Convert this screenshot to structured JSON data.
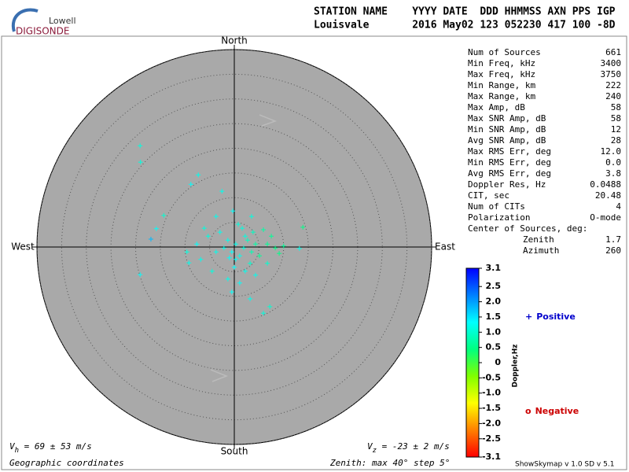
{
  "header": {
    "logo_top": "Lowell",
    "logo_bottom": "DIGISONDE",
    "line1": "STATION NAME    YYYY DATE  DDD HHMMSS AXN PPS IGP",
    "line2": "Louisvale       2016 May02 123 052230 417 100 -8D"
  },
  "stats": [
    {
      "label": "Num of Sources",
      "value": "661"
    },
    {
      "label": "Min Freq, kHz",
      "value": "3400"
    },
    {
      "label": "Max Freq, kHz",
      "value": "3750"
    },
    {
      "label": "Min Range, km",
      "value": "222"
    },
    {
      "label": "Max Range, km",
      "value": "240"
    },
    {
      "label": "Max Amp, dB",
      "value": "58"
    },
    {
      "label": "Max SNR Amp, dB",
      "value": "58"
    },
    {
      "label": "Min SNR Amp, dB",
      "value": "12"
    },
    {
      "label": "Avg SNR Amp, dB",
      "value": "28"
    },
    {
      "label": "Max RMS Err, deg",
      "value": "12.0"
    },
    {
      "label": "Min RMS Err, deg",
      "value": "0.0"
    },
    {
      "label": "Avg RMS Err, deg",
      "value": "3.8"
    },
    {
      "label": "Doppler Res, Hz",
      "value": "0.0488"
    },
    {
      "label": "CIT, sec",
      "value": "20.48"
    },
    {
      "label": "Num of CITs",
      "value": "4"
    },
    {
      "label": "Polarization",
      "value": "O-mode"
    }
  ],
  "center": {
    "title": "Center of Sources, deg:",
    "rows": [
      {
        "label": "Zenith",
        "value": "1.7"
      },
      {
        "label": "Azimuth",
        "value": "260"
      }
    ]
  },
  "chart_data": {
    "type": "skymap",
    "directions": {
      "north": "North",
      "south": "South",
      "west": "West",
      "east": "East"
    },
    "rlim": [
      0,
      40
    ],
    "rticks": [
      5,
      10,
      15,
      20,
      25,
      30,
      35,
      40
    ],
    "points": {
      "east": [
        -19.1,
        -19.0,
        -7.3,
        -8.8,
        -2.5,
        -14.3,
        -15.8,
        -16.9,
        -19.1,
        13.9,
        10.0,
        13.2,
        7.2,
        5.9,
        3.2,
        -0.5,
        -9.6,
        -9.2,
        -6.1,
        -3.7,
        -0.3,
        3.5,
        5.9,
        7.5,
        8.3,
        6.7,
        4.3,
        1.1,
        -1.3,
        -4.5,
        -6.8,
        -7.6,
        -5.3,
        -2.9,
        0.3,
        1.9,
        2.7,
        1.1,
        -0.5,
        3.5,
        2.2,
        -1.3,
        0.3,
        4.3,
        -2.1,
        1.6,
        3.2,
        0,
        5.1,
        -3.7,
        3.8,
        0.8,
        -1.0,
        2.2,
        9.1,
        6.7
      ],
      "north": [
        20.5,
        17.2,
        14.6,
        12.7,
        11.3,
        6.4,
        3.7,
        1.6,
        -5.6,
        4.0,
        0.2,
        -0.3,
        -12.1,
        -13.4,
        -10.5,
        -9.1,
        -1.0,
        -3.2,
        3.8,
        6.2,
        7.3,
        6.2,
        3.5,
        2.2,
        -0.2,
        -3.3,
        -5.7,
        -7.3,
        -6.5,
        -4.9,
        -2.5,
        0.6,
        2.2,
        3.0,
        0.6,
        -0.2,
        1.4,
        -1.8,
        -1.0,
        -1.0,
        2.2,
        1.4,
        -2.5,
        0.6,
        -0.2,
        3.8,
        -3.3,
        -4.1,
        -1.8,
        -1.0,
        3.0,
        4.6,
        -2.2,
        -4.9,
        -1.3,
        0.6
      ],
      "doppler": [
        1.1,
        1.1,
        1.2,
        1.3,
        1.2,
        1.0,
        1.3,
        1.8,
        1.3,
        0.5,
        0.6,
        1.2,
        1.0,
        1.1,
        1.2,
        1.3,
        1.1,
        1.2,
        1.1,
        1.2,
        1.3,
        1.1,
        0.7,
        0.6,
        0.5,
        1.0,
        1.2,
        1.3,
        1.2,
        1.1,
        1.2,
        1.3,
        1.1,
        1.2,
        1.2,
        1.1,
        0.9,
        1.2,
        1.3,
        0.8,
        1.1,
        1.2,
        1.3,
        0.7,
        1.2,
        1.1,
        1.0,
        1.3,
        0.6,
        1.2,
        0.9,
        1.1,
        1.3,
        1.2,
        0.5,
        0.6
      ]
    },
    "colorbar": {
      "label": "Doppler,Hz",
      "clim": [
        -3.1,
        3.1
      ],
      "colormap": [
        "#ff0000",
        "#ff8000",
        "#ffff00",
        "#80ff00",
        "#00ff80",
        "#00ffff",
        "#0080ff",
        "#0000ff"
      ],
      "ticks": [
        3.1,
        2.5,
        {
          "value": 2,
          "label": "2.0"
        },
        1.5,
        {
          "value": 1,
          "label": "1.0"
        },
        0.5,
        0,
        -0.5,
        {
          "value": -1,
          "label": "-1.0"
        },
        -1.5,
        {
          "value": -2,
          "label": "-2.0"
        },
        -2.5,
        -3.1
      ]
    },
    "legend": [
      {
        "symbol": "+",
        "label": "Positive",
        "color": "#0000cc"
      },
      {
        "symbol": "o",
        "label": "Negative",
        "color": "#cc0000"
      }
    ]
  },
  "footer": {
    "vh_symbol": "V",
    "vh_sub": "h",
    "vh_text": " = 69 ± 53 m/s",
    "vz_symbol": "V",
    "vz_sub": "z",
    "vz_text": " = -23 ± 2 m/s",
    "coords": "Geographic coordinates",
    "zenith": "Zenith: max 40°  step 5°",
    "version": "ShowSkymap v 1.0  SD v 5.1"
  }
}
